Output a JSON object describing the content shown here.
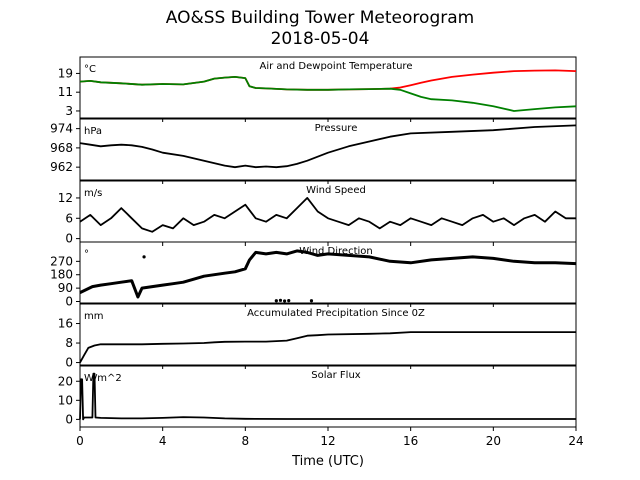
{
  "title": "AO&SS Building Tower Meteorogram",
  "subtitle": "2018-05-04",
  "chart_data": {
    "type": "line",
    "xlabel": "Time (UTC)",
    "xlim": [
      0,
      24
    ],
    "x_ticks": [
      0,
      4,
      8,
      12,
      16,
      20,
      24
    ],
    "panels": [
      {
        "title": "Air and Dewpoint Temperature",
        "unit": "°C",
        "ylim": [
          0,
          26
        ],
        "y_ticks": [
          3,
          11,
          19
        ],
        "series": [
          {
            "name": "",
            "color": "#ff0000",
            "x": [
              0,
              0.5,
              1,
              2,
              3,
              4,
              5,
              6,
              6.5,
              7,
              7.5,
              8,
              8.2,
              8.5,
              9,
              10,
              11,
              12,
              13,
              14,
              15,
              15.5,
              16,
              16.5,
              17,
              18,
              19,
              20,
              21,
              22,
              23,
              24
            ],
            "y": [
              15.5,
              15.8,
              15.2,
              14.8,
              14.2,
              14.5,
              14.3,
              15.5,
              16.8,
              17.2,
              17.5,
              17.0,
              13.5,
              12.8,
              12.6,
              12.2,
              12.0,
              12.0,
              12.2,
              12.3,
              12.5,
              13.0,
              14.0,
              15.0,
              16.0,
              17.5,
              18.5,
              19.3,
              20.0,
              20.2,
              20.3,
              20.0
            ]
          },
          {
            "name": "",
            "color": "#008000",
            "x": [
              0,
              0.5,
              1,
              2,
              3,
              4,
              5,
              6,
              6.5,
              7,
              7.5,
              8,
              8.2,
              8.5,
              9,
              10,
              11,
              12,
              13,
              14,
              15,
              15.5,
              16,
              16.5,
              17,
              18,
              19,
              20,
              20.5,
              21,
              22,
              23,
              24
            ],
            "y": [
              15.5,
              15.8,
              15.2,
              14.8,
              14.2,
              14.5,
              14.3,
              15.5,
              16.8,
              17.2,
              17.5,
              17.0,
              13.5,
              12.8,
              12.6,
              12.2,
              12.0,
              12.0,
              12.2,
              12.3,
              12.5,
              12.0,
              10.5,
              9.0,
              8.0,
              7.5,
              6.5,
              5.0,
              4.0,
              3.0,
              3.8,
              4.5,
              5.0
            ]
          }
        ]
      },
      {
        "title": "Pressure",
        "unit": "hPa",
        "ylim": [
          958,
          977
        ],
        "y_ticks": [
          962,
          968,
          974
        ],
        "series": [
          {
            "name": "",
            "color": "#000000",
            "x": [
              0,
              0.5,
              1,
              1.5,
              2,
              2.5,
              3,
              3.5,
              4,
              5,
              6,
              7,
              7.5,
              8,
              8.5,
              9,
              9.5,
              10,
              10.5,
              11,
              12,
              13,
              14,
              15,
              16,
              18,
              20,
              22,
              24
            ],
            "y": [
              969.5,
              969,
              968.5,
              968.8,
              969.0,
              968.8,
              968.3,
              967.5,
              966.5,
              965.5,
              964.0,
              962.5,
              962.0,
              962.5,
              962.0,
              962.2,
              962.0,
              962.3,
              963.0,
              964.0,
              966.5,
              968.5,
              970.0,
              971.5,
              972.5,
              973.0,
              973.5,
              974.5,
              975.0
            ]
          }
        ]
      },
      {
        "title": "Wind Speed",
        "unit": "m/s",
        "ylim": [
          -1,
          17
        ],
        "y_ticks": [
          0,
          6,
          12
        ],
        "series": [
          {
            "name": "",
            "color": "#000000",
            "x": [
              0,
              0.5,
              1,
              1.5,
              2,
              2.5,
              3,
              3.5,
              4,
              4.5,
              5,
              5.5,
              6,
              6.5,
              7,
              7.5,
              8,
              8.5,
              9,
              9.5,
              10,
              10.5,
              11,
              11.5,
              12,
              12.5,
              13,
              13.5,
              14,
              14.5,
              15,
              15.5,
              16,
              16.5,
              17,
              17.5,
              18,
              18.5,
              19,
              19.5,
              20,
              20.5,
              21,
              21.5,
              22,
              22.5,
              23,
              23.5,
              24
            ],
            "y": [
              5,
              7,
              4,
              6,
              9,
              6,
              3,
              2,
              4,
              3,
              6,
              4,
              5,
              7,
              6,
              8,
              10,
              6,
              5,
              7,
              6,
              9,
              12,
              8,
              6,
              5,
              4,
              6,
              5,
              3,
              5,
              4,
              6,
              5,
              4,
              6,
              5,
              4,
              6,
              7,
              5,
              6,
              4,
              6,
              7,
              5,
              8,
              6,
              6
            ]
          }
        ]
      },
      {
        "title": "Wind Direction",
        "unit": "°",
        "ylim": [
          -10,
          400
        ],
        "y_ticks": [
          0,
          90,
          180,
          270
        ],
        "series": [
          {
            "name": "",
            "color": "#000000",
            "x": [
              0,
              0.3,
              0.6,
              1,
              1.5,
              2,
              2.5,
              2.8,
              3,
              3.5,
              4,
              4.5,
              5,
              5.5,
              6,
              6.5,
              7,
              7.5,
              8,
              8.2,
              8.5,
              9,
              9.5,
              10,
              10.5,
              11,
              11.5,
              12,
              13,
              14,
              15,
              16,
              17,
              18,
              19,
              20,
              21,
              22,
              23,
              24
            ],
            "y": [
              60,
              80,
              100,
              110,
              120,
              130,
              140,
              30,
              90,
              100,
              110,
              120,
              130,
              150,
              170,
              180,
              190,
              200,
              220,
              280,
              330,
              320,
              330,
              320,
              340,
              330,
              310,
              320,
              310,
              300,
              270,
              260,
              280,
              290,
              300,
              290,
              270,
              260,
              260,
              255
            ]
          },
          {
            "name": "",
            "color": "#000000",
            "x": [
              9.5,
              9.7,
              9.9,
              10.1,
              11.2,
              3.1
            ],
            "y": [
              5,
              8,
              4,
              6,
              5,
              300
            ]
          }
        ]
      },
      {
        "title": "Accumulated Precipitation Since 0Z",
        "unit": "mm",
        "ylim": [
          -1,
          24
        ],
        "y_ticks": [
          0,
          8,
          16
        ],
        "series": [
          {
            "name": "",
            "color": "#000000",
            "x": [
              0,
              0.2,
              0.4,
              0.7,
              1,
              2,
              3,
              4,
              5,
              6,
              6.5,
              7,
              8,
              9,
              10,
              10.5,
              11,
              11.5,
              12,
              14,
              15,
              16,
              17,
              18,
              20,
              22,
              24
            ],
            "y": [
              0,
              3,
              6,
              7,
              7.5,
              7.5,
              7.5,
              7.7,
              7.8,
              8,
              8.3,
              8.5,
              8.6,
              8.6,
              9,
              10,
              11,
              11.2,
              11.5,
              11.8,
              12,
              12.5,
              12.5,
              12.5,
              12.5,
              12.5,
              12.5
            ]
          }
        ]
      },
      {
        "title": "Solar Flux",
        "unit": "W/m^2",
        "ylim": [
          -4,
          28
        ],
        "y_ticks": [
          0,
          10,
          20
        ],
        "series": [
          {
            "name": "",
            "color": "#000000",
            "x": [
              0,
              0.05,
              0.1,
              0.15,
              0.2,
              0.6,
              0.65,
              0.7,
              0.75,
              1,
              2,
              3,
              4,
              5,
              6,
              7,
              8,
              10,
              12,
              14,
              16,
              18,
              20,
              22,
              24
            ],
            "y": [
              0,
              21,
              21,
              0,
              1,
              1,
              24,
              24,
              1,
              0.8,
              0.5,
              0.5,
              0.8,
              1.2,
              1.0,
              0.5,
              0.3,
              0.2,
              0.2,
              0.2,
              0.2,
              0.2,
              0.2,
              0.2,
              0.2
            ]
          }
        ]
      }
    ]
  }
}
